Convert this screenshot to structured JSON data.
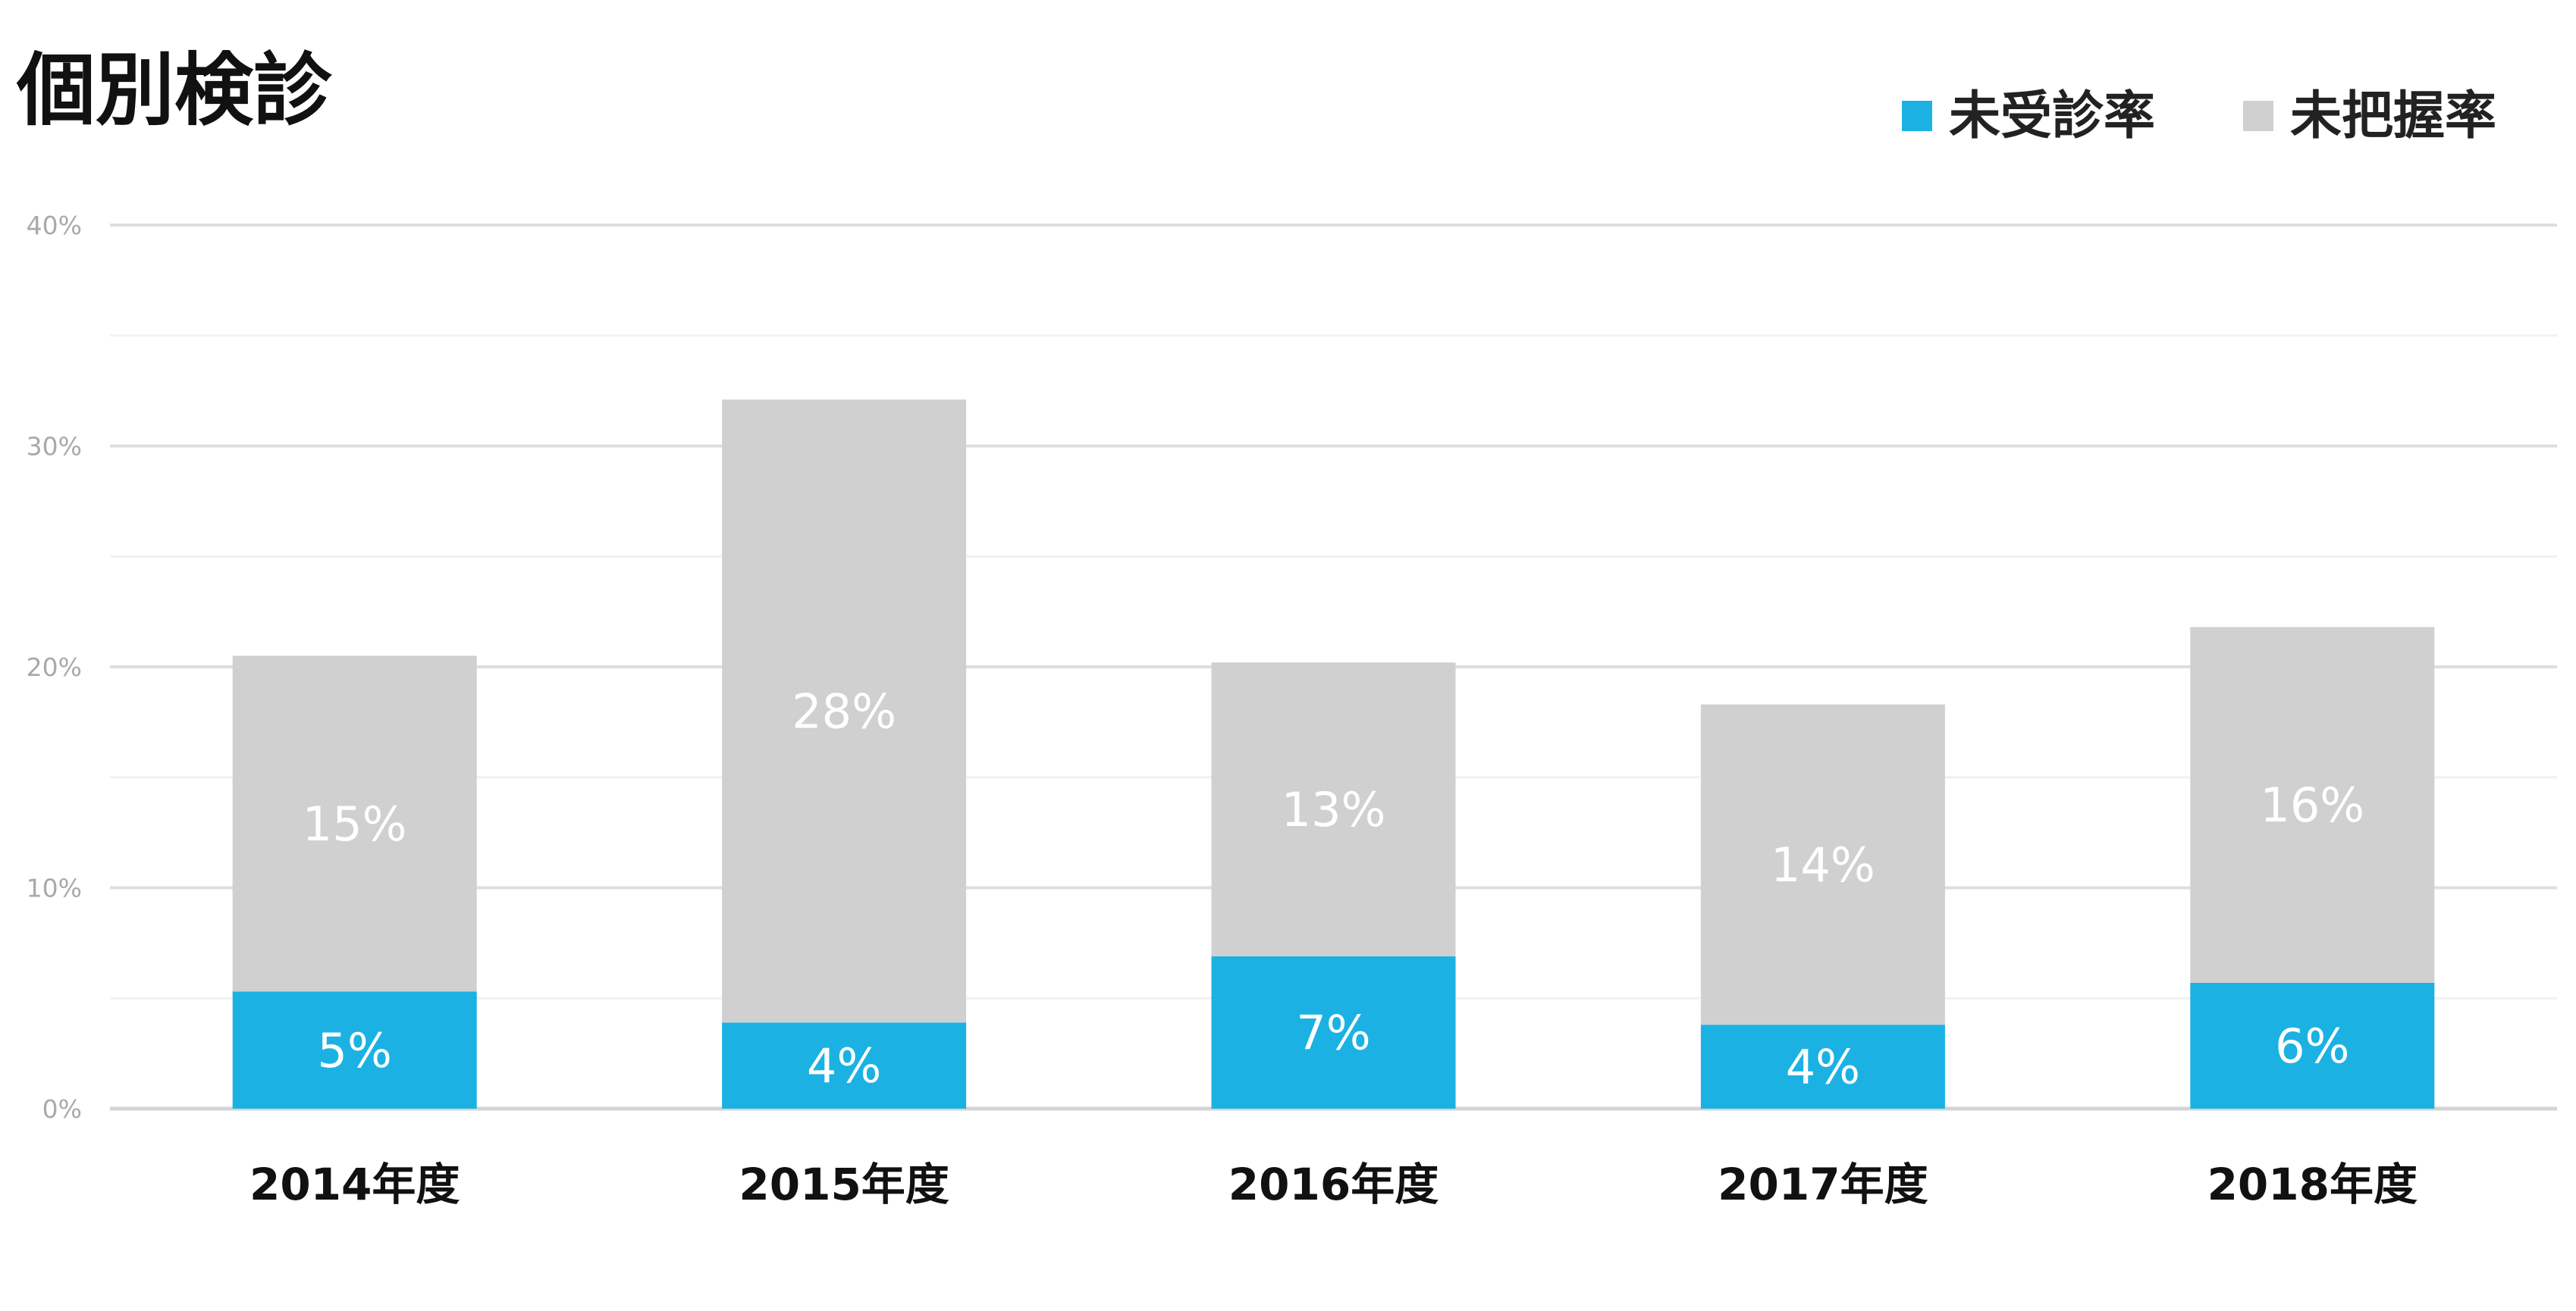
{
  "chart_data": {
    "type": "bar",
    "stacked": true,
    "title": "個別検診",
    "categories": [
      "2014年度",
      "2015年度",
      "2016年度",
      "2017年度",
      "2018年度"
    ],
    "series": [
      {
        "name": "未受診率",
        "color": "#1bb2e3",
        "values": [
          5.3,
          3.9,
          6.9,
          3.8,
          5.7
        ],
        "labels": [
          "5%",
          "4%",
          "7%",
          "4%",
          "6%"
        ]
      },
      {
        "name": "未把握率",
        "color": "#d1d0d1",
        "values": [
          15.2,
          28.2,
          13.3,
          14.5,
          16.1
        ],
        "labels": [
          "15%",
          "28%",
          "13%",
          "14%",
          "16%"
        ]
      }
    ],
    "ylim": [
      0,
      40
    ],
    "yticks": [
      {
        "value": 0,
        "label": "0%"
      },
      {
        "value": 10,
        "label": "10%"
      },
      {
        "value": 20,
        "label": "20%"
      },
      {
        "value": 30,
        "label": "30%"
      },
      {
        "value": 40,
        "label": "40%"
      }
    ],
    "grid": true,
    "legend_position": "top-right",
    "colors": {
      "grid_major": "#dedede",
      "grid_minor": "#f1f1f1",
      "axis": "#d4d4d4"
    }
  }
}
